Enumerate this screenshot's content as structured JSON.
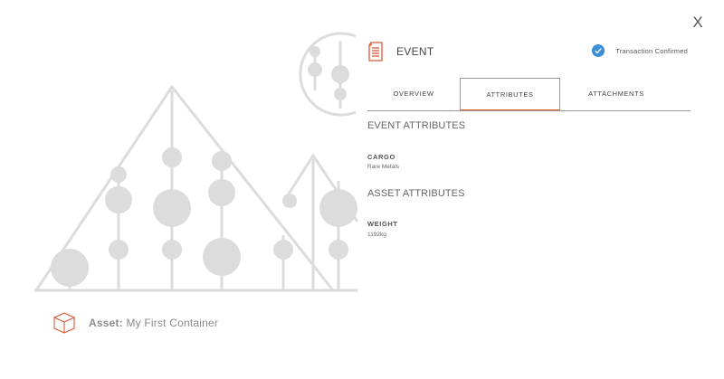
{
  "close": {
    "label": "X"
  },
  "event": {
    "title": "EVENT",
    "status": "Transaction Confirmed"
  },
  "tabs": [
    {
      "label": "OVERVIEW"
    },
    {
      "label": "ATTRIBUTES"
    },
    {
      "label": "ATTACHMENTS"
    }
  ],
  "active_tab": "ATTRIBUTES",
  "sections": {
    "event_attributes": {
      "heading": "EVENT ATTRIBUTES",
      "items": [
        {
          "label": "CARGO",
          "value": "Rare Metals"
        }
      ]
    },
    "asset_attributes": {
      "heading": "ASSET ATTRIBUTES",
      "items": [
        {
          "label": "WEIGHT",
          "value": "1192kg"
        }
      ]
    }
  },
  "asset": {
    "prefix": "Asset:",
    "name": "My First Container"
  },
  "colors": {
    "accent": "#d85b37",
    "check": "#3a8fd6",
    "illustration": "#dcdcdc"
  },
  "icons": {
    "document": "document-icon",
    "check": "check-circle-icon",
    "box": "box-icon",
    "close": "close-icon"
  }
}
